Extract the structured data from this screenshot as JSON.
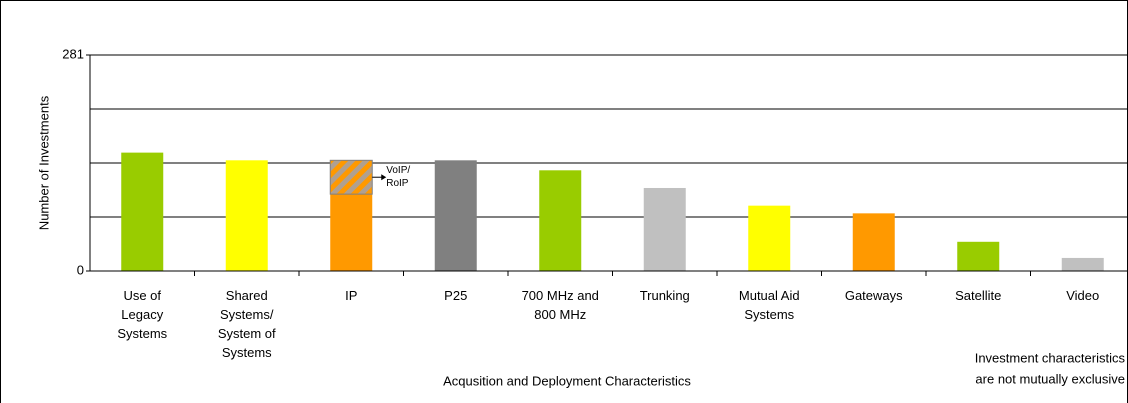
{
  "chart_data": {
    "type": "bar",
    "categories": [
      "Use of Legacy Systems",
      "Shared Systems/ System of Systems",
      "IP",
      "P25",
      "700 MHz and 800 MHz",
      "Trunking",
      "Mutual Aid Systems",
      "Gateways",
      "Satellite",
      "Video"
    ],
    "series": [
      {
        "values": [
          154,
          144,
          100,
          144,
          131,
          108,
          85,
          75,
          38,
          17
        ],
        "colors": [
          "#99cc00",
          "#ffff00",
          "#ff9900",
          "#808080",
          "#99cc00",
          "#c0c0c0",
          "#ffff00",
          "#ff9900",
          "#99cc00",
          "#c0c0c0"
        ]
      },
      {
        "name": "VoIP/ RoIP",
        "values": [
          null,
          null,
          44,
          null,
          null,
          null,
          null,
          null,
          null,
          null
        ],
        "color": "#ff9900"
      }
    ],
    "ylabel": "Number of Investments",
    "xlabel": "Acqusition and Deployment Characteristics",
    "note": [
      "Investment characteristics",
      "are not mutually exclusive"
    ],
    "ylim": [
      0,
      281
    ],
    "yticks": [
      0,
      281
    ],
    "grid": true
  }
}
